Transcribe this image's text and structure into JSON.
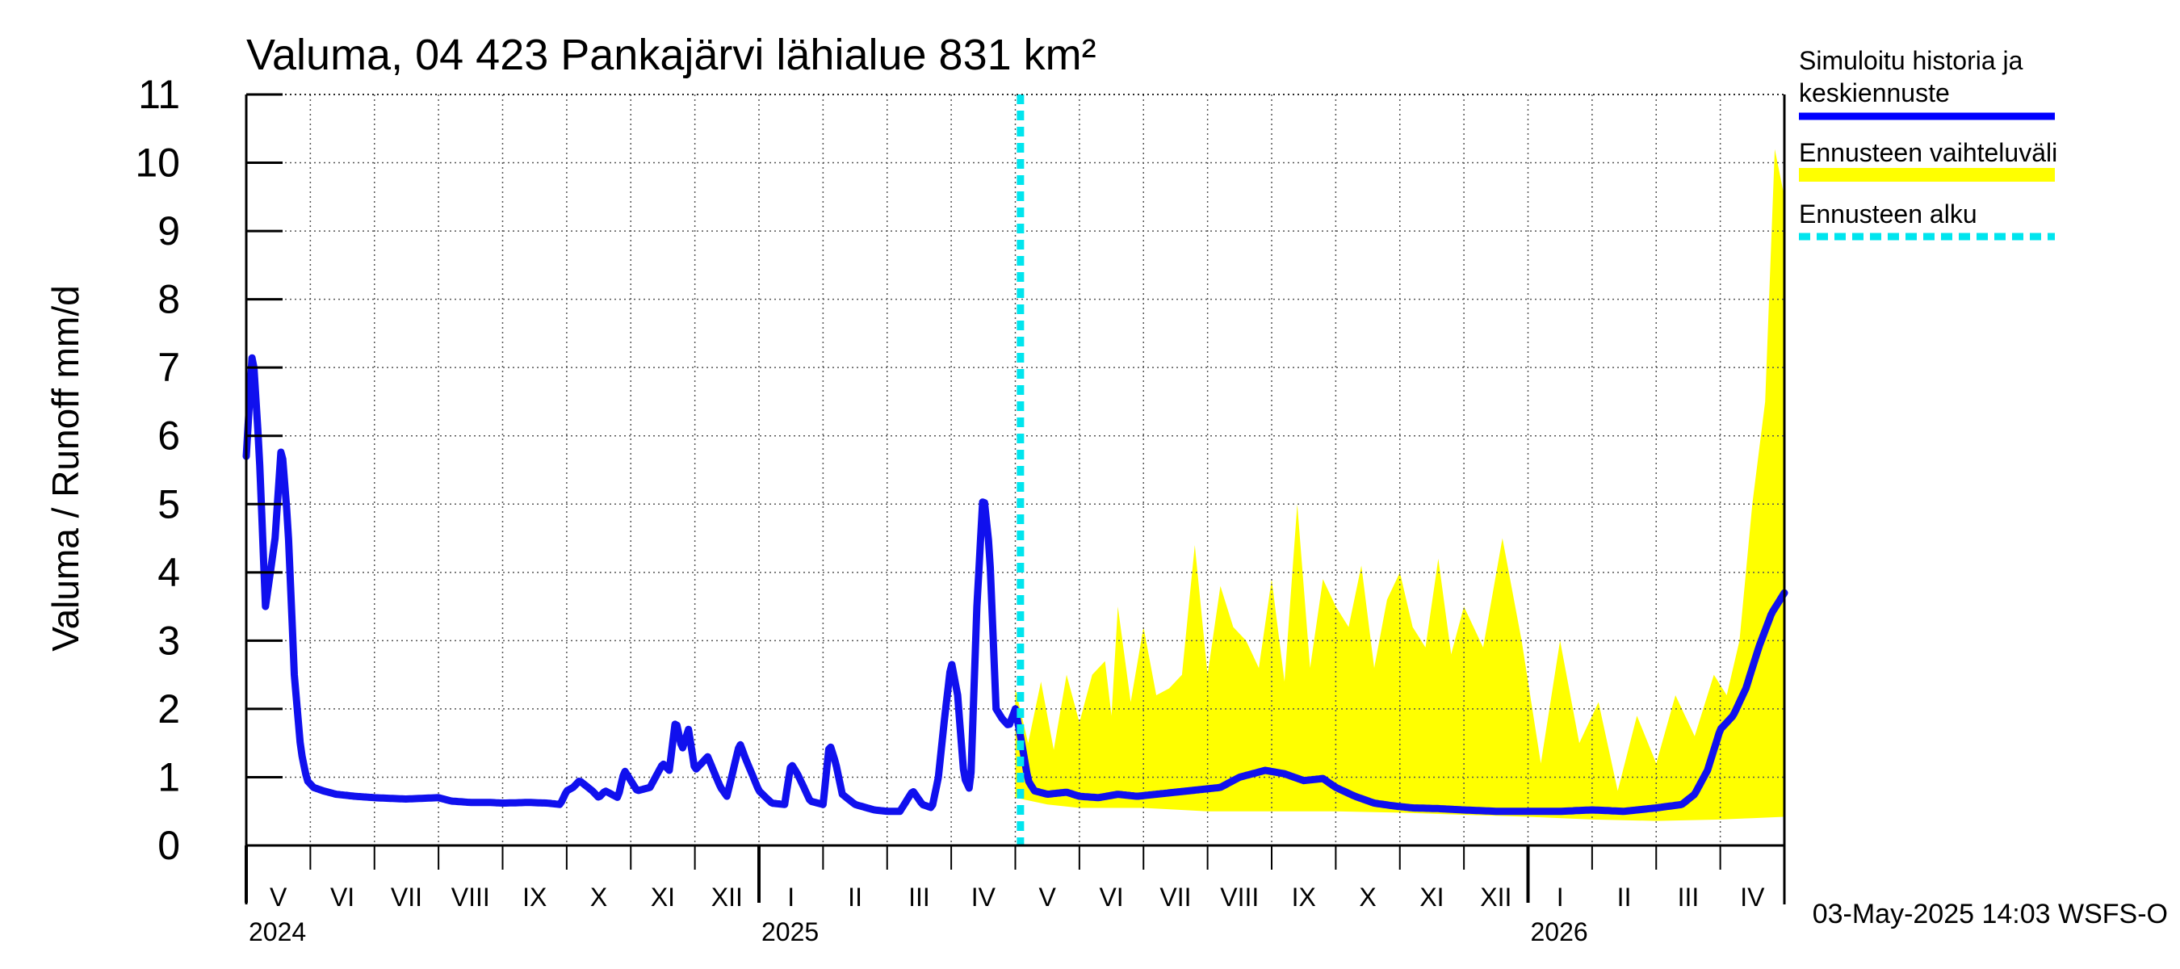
{
  "chart_data": {
    "type": "line",
    "title": "Valuma, 04 423 Pankajärvi lähialue 831 km²",
    "ylabel": "Valuma / Runoff     mm/d",
    "ylim": [
      0,
      11
    ],
    "yticks": [
      "0",
      "1",
      "2",
      "3",
      "4",
      "5",
      "6",
      "7",
      "8",
      "9",
      "10",
      "11"
    ],
    "x_range_months": [
      0,
      24
    ],
    "month_labels": [
      "V",
      "VI",
      "VII",
      "VIII",
      "IX",
      "X",
      "XI",
      "XII",
      "I",
      "II",
      "III",
      "IV",
      "V",
      "VI",
      "VII",
      "VIII",
      "IX",
      "X",
      "XI",
      "XII",
      "I",
      "II",
      "III",
      "IV"
    ],
    "year_labels": [
      {
        "label": "2024",
        "month_index": 0
      },
      {
        "label": "2025",
        "month_index": 8
      },
      {
        "label": "2026",
        "month_index": 20
      }
    ],
    "forecast_start_month": 12.08,
    "footer": "03-May-2025 14:03 WSFS-O",
    "legend": [
      {
        "label": "Simuloitu historia ja",
        "label2": "keskiennuste",
        "color": "#0000ff",
        "style": "solid"
      },
      {
        "label": "Ennusteen vaihteluväli",
        "color": "#ffff00",
        "style": "band"
      },
      {
        "label": "Ennusteen alku",
        "color": "#00e5ee",
        "style": "dashed"
      }
    ],
    "colors": {
      "sim": "#1010ee",
      "band": "#ffff00",
      "forecast_line": "#00e5ee",
      "grid": "#000000"
    },
    "series": [
      {
        "name": "Simuloitu historia ja keskiennuste",
        "x": [
          0,
          0.1,
          0.2,
          0.3,
          0.45,
          0.55,
          0.65,
          0.75,
          0.85,
          0.95,
          1.05,
          1.2,
          1.4,
          1.7,
          2.0,
          2.5,
          3.0,
          3.2,
          3.5,
          3.8,
          4.0,
          4.4,
          4.7,
          4.9,
          5.0,
          5.1,
          5.2,
          5.4,
          5.5,
          5.6,
          5.8,
          5.9,
          6.0,
          6.1,
          6.3,
          6.5,
          6.6,
          6.7,
          6.8,
          6.9,
          7.0,
          7.2,
          7.4,
          7.5,
          7.7,
          7.8,
          8.0,
          8.2,
          8.4,
          8.5,
          8.6,
          8.8,
          9.0,
          9.1,
          9.2,
          9.3,
          9.5,
          9.8,
          10.0,
          10.2,
          10.4,
          10.55,
          10.7,
          10.8,
          10.9,
          11.0,
          11.1,
          11.2,
          11.3,
          11.4,
          11.5,
          11.6,
          11.7,
          11.8,
          11.9,
          12.0,
          12.1,
          12.2,
          12.3,
          12.5,
          12.8,
          13.0,
          13.3,
          13.6,
          13.9,
          14.2,
          14.5,
          14.9,
          15.2,
          15.5,
          15.9,
          16.2,
          16.5,
          16.8,
          17.0,
          17.3,
          17.6,
          17.9,
          18.2,
          18.6,
          19.0,
          19.5,
          20.0,
          20.5,
          21.0,
          21.5,
          22.0,
          22.4,
          22.6,
          22.8,
          23.0,
          23.2,
          23.4,
          23.6,
          23.8,
          24.0
        ],
        "values": [
          5.7,
          7.3,
          5.8,
          3.5,
          4.5,
          5.9,
          4.7,
          2.5,
          1.4,
          0.95,
          0.85,
          0.8,
          0.75,
          0.72,
          0.7,
          0.68,
          0.7,
          0.65,
          0.63,
          0.63,
          0.62,
          0.63,
          0.62,
          0.6,
          0.8,
          0.85,
          0.95,
          0.8,
          0.7,
          0.8,
          0.7,
          1.1,
          0.95,
          0.8,
          0.85,
          1.2,
          1.1,
          1.85,
          1.4,
          1.7,
          1.1,
          1.3,
          0.85,
          0.72,
          1.5,
          1.25,
          0.8,
          0.62,
          0.6,
          1.2,
          1.05,
          0.65,
          0.6,
          1.5,
          1.2,
          0.75,
          0.6,
          0.52,
          0.5,
          0.5,
          0.8,
          0.6,
          0.55,
          1.0,
          1.9,
          2.7,
          2.2,
          1.0,
          0.8,
          3.5,
          5.2,
          4.3,
          2.0,
          1.85,
          1.75,
          2.0,
          1.5,
          0.95,
          0.8,
          0.75,
          0.78,
          0.72,
          0.7,
          0.75,
          0.72,
          0.75,
          0.78,
          0.82,
          0.85,
          1.0,
          1.1,
          1.05,
          0.95,
          0.98,
          0.85,
          0.72,
          0.62,
          0.58,
          0.55,
          0.54,
          0.52,
          0.5,
          0.5,
          0.5,
          0.52,
          0.5,
          0.55,
          0.6,
          0.75,
          1.1,
          1.7,
          1.9,
          2.3,
          2.9,
          3.4,
          3.7
        ]
      },
      {
        "name": "Ennusteen vaihteluväli (yläraja)",
        "x": [
          12.0,
          12.2,
          12.4,
          12.6,
          12.8,
          13.0,
          13.2,
          13.4,
          13.5,
          13.6,
          13.8,
          14.0,
          14.2,
          14.4,
          14.6,
          14.8,
          15.0,
          15.2,
          15.4,
          15.6,
          15.8,
          16.0,
          16.2,
          16.4,
          16.6,
          16.8,
          17.0,
          17.2,
          17.4,
          17.6,
          17.8,
          18.0,
          18.2,
          18.4,
          18.6,
          18.8,
          19.0,
          19.3,
          19.6,
          19.9,
          20.2,
          20.5,
          20.8,
          21.1,
          21.4,
          21.7,
          22.0,
          22.3,
          22.6,
          22.9,
          23.1,
          23.3,
          23.5,
          23.7,
          23.85,
          24.0
        ],
        "values": [
          2.3,
          1.5,
          2.4,
          1.4,
          2.5,
          1.8,
          2.5,
          2.7,
          1.9,
          3.5,
          2.1,
          3.2,
          2.2,
          2.3,
          2.5,
          4.4,
          2.5,
          3.8,
          3.2,
          3.0,
          2.6,
          3.9,
          2.4,
          5.0,
          2.6,
          3.9,
          3.5,
          3.2,
          4.1,
          2.6,
          3.6,
          4.0,
          3.2,
          2.9,
          4.2,
          2.8,
          3.5,
          2.9,
          4.5,
          3.0,
          1.2,
          3.0,
          1.5,
          2.1,
          0.8,
          1.9,
          1.2,
          2.2,
          1.6,
          2.5,
          2.2,
          3.0,
          5.0,
          6.5,
          10.2,
          9.5
        ]
      },
      {
        "name": "Ennusteen vaihteluväli (alaraja)",
        "x": [
          12.0,
          12.5,
          13.0,
          14.0,
          15.0,
          16.0,
          17.0,
          18.0,
          19.0,
          20.0,
          21.0,
          22.0,
          23.0,
          23.5,
          24.0
        ],
        "values": [
          0.7,
          0.6,
          0.55,
          0.55,
          0.5,
          0.5,
          0.5,
          0.48,
          0.45,
          0.42,
          0.38,
          0.36,
          0.38,
          0.4,
          0.42
        ]
      }
    ]
  }
}
